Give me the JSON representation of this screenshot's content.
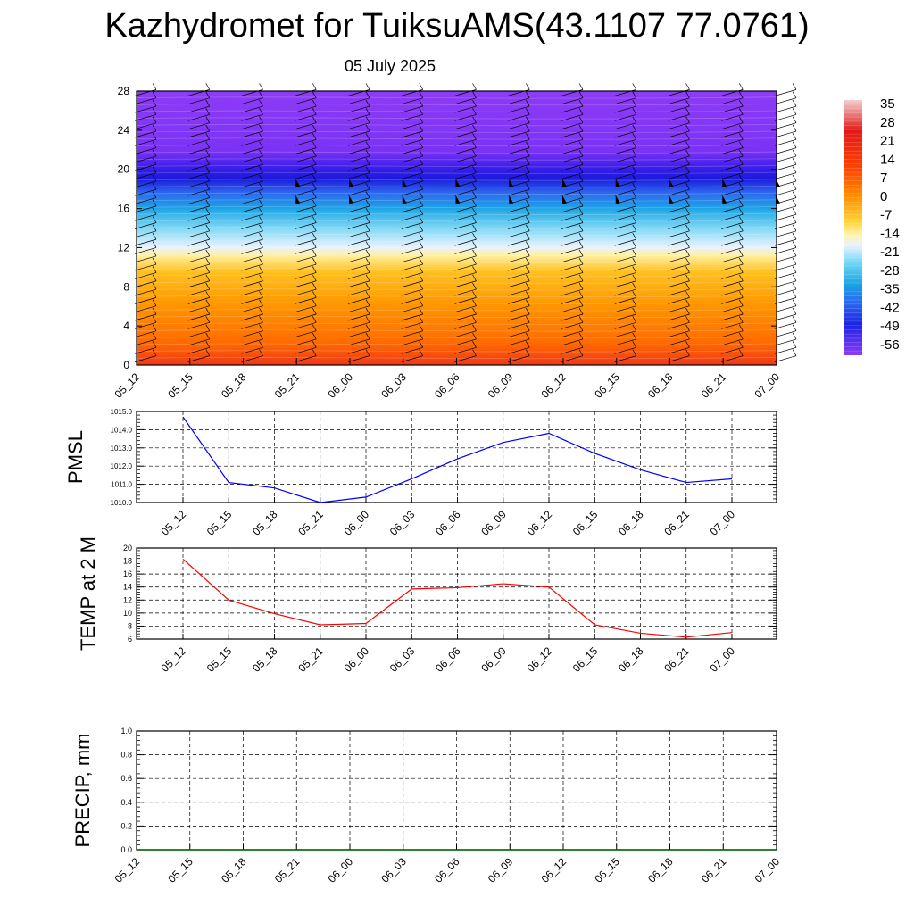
{
  "title": "Kazhydromet for TuiksuAMS(43.1107 77.0761)",
  "subtitle": "05 July 2025",
  "colorbar": {
    "labels": [
      "35",
      "28",
      "21",
      "14",
      "7",
      "0",
      "-7",
      "-14",
      "-21",
      "-28",
      "-35",
      "-42",
      "-49",
      "-56"
    ],
    "stops": [
      "#f4c8c8",
      "#e21818",
      "#ff3c00",
      "#ff8a00",
      "#ffbe1a",
      "#ffe73a",
      "#fff5b0",
      "#e8f0ff",
      "#6ed6f5",
      "#19a8e8",
      "#2a62f0",
      "#1f2fe8",
      "#5218f0",
      "#8a3ff5"
    ]
  },
  "chart_data": [
    {
      "type": "heatmap",
      "ylim": [
        0,
        28
      ],
      "yticks": [
        "0",
        "4",
        "8",
        "12",
        "16",
        "20",
        "24",
        "28"
      ],
      "categories": [
        "05_12",
        "05_15",
        "05_18",
        "05_21",
        "06_00",
        "06_03",
        "06_06",
        "06_09",
        "06_12",
        "06_15",
        "06_18",
        "06_21",
        "07_00"
      ],
      "wind_barbs": true
    },
    {
      "type": "line",
      "ylabel": "PMSL",
      "categories": [
        "05_12",
        "05_15",
        "05_18",
        "05_21",
        "06_00",
        "06_03",
        "06_06",
        "06_09",
        "06_12",
        "06_15",
        "06_18",
        "06_21",
        "07_00"
      ],
      "yticks": [
        "1010.0",
        "1011.0",
        "1012.0",
        "1013.0",
        "1014.0",
        "1015.0"
      ],
      "ylim": [
        1010.0,
        1015.0
      ],
      "series": [
        {
          "color": "#0000ff",
          "values": [
            1014.7,
            1011.1,
            1010.8,
            1010.0,
            1010.3,
            1011.3,
            1012.4,
            1013.3,
            1013.8,
            1012.7,
            1011.8,
            1011.1,
            1011.3
          ]
        }
      ],
      "grid": true
    },
    {
      "type": "line",
      "ylabel": "TEMP at 2 M",
      "categories": [
        "05_12",
        "05_15",
        "05_18",
        "05_21",
        "06_00",
        "06_03",
        "06_06",
        "06_09",
        "06_12",
        "06_15",
        "06_18",
        "06_21",
        "07_00"
      ],
      "yticks": [
        "6",
        "8",
        "10",
        "12",
        "14",
        "16",
        "18",
        "20"
      ],
      "ylim": [
        6,
        20
      ],
      "series": [
        {
          "color": "#ff0000",
          "values": [
            18.3,
            12.0,
            9.9,
            8.2,
            8.4,
            13.7,
            13.9,
            14.5,
            14.0,
            8.2,
            6.9,
            6.3,
            7.0
          ]
        }
      ],
      "grid": true
    },
    {
      "type": "line",
      "ylabel": "PRECIP, mm",
      "categories": [
        "05_12",
        "05_15",
        "05_18",
        "05_21",
        "06_00",
        "06_03",
        "06_06",
        "06_09",
        "06_12",
        "06_15",
        "06_18",
        "06_21",
        "07_00"
      ],
      "yticks": [
        "0.0",
        "0.2",
        "0.4",
        "0.6",
        "0.8",
        "1.0"
      ],
      "ylim": [
        0.0,
        1.0
      ],
      "series": [
        {
          "color": "#006400",
          "values": [
            0,
            0,
            0,
            0,
            0,
            0,
            0,
            0,
            0,
            0,
            0,
            0,
            0
          ]
        }
      ],
      "grid": true
    }
  ]
}
